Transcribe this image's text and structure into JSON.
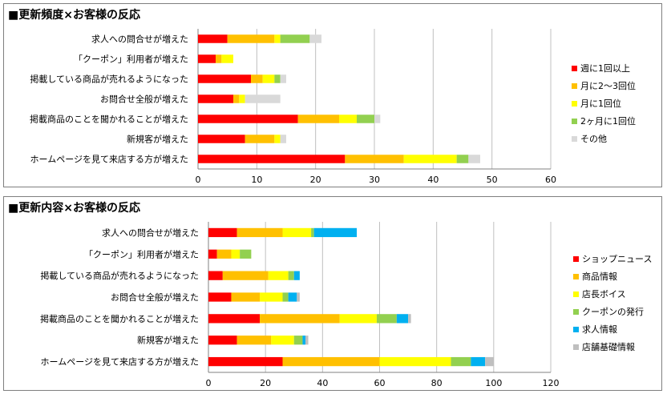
{
  "chart_data": [
    {
      "type": "bar",
      "orientation": "horizontal",
      "stacked": true,
      "title": "■更新頻度×お客様の反応",
      "categories": [
        "求人への問合せが増えた",
        "「クーポン」利用者が増えた",
        "掲載している商品が売れるようになった",
        "お問合せ全般が増えた",
        "掲載商品のことを聞かれることが増えた",
        "新規客が増えた",
        "ホームページを見て来店する方が増えた"
      ],
      "series": [
        {
          "name": "週に1回以上",
          "color": "#ff0000",
          "values": [
            5,
            3,
            9,
            6,
            17,
            8,
            25
          ]
        },
        {
          "name": "月に2〜3回位",
          "color": "#ffc000",
          "values": [
            8,
            1,
            2,
            1,
            7,
            5,
            10
          ]
        },
        {
          "name": "月に1回位",
          "color": "#ffff00",
          "values": [
            1,
            2,
            2,
            1,
            3,
            1,
            9
          ]
        },
        {
          "name": "2ヶ月に1回位",
          "color": "#92d050",
          "values": [
            5,
            0,
            1,
            0,
            3,
            0,
            2
          ]
        },
        {
          "name": "その他",
          "color": "#d9d9d9",
          "values": [
            2,
            0,
            1,
            6,
            1,
            1,
            2
          ]
        }
      ],
      "xlim": [
        0,
        60
      ],
      "xticks": [
        0,
        10,
        20,
        30,
        40,
        50,
        60
      ],
      "grid": true,
      "legend": "right"
    },
    {
      "type": "bar",
      "orientation": "horizontal",
      "stacked": true,
      "title": "■更新内容×お客様の反応",
      "categories": [
        "求人への問合せが増えた",
        "「クーポン」利用者が増えた",
        "掲載している商品が売れるようになった",
        "お問合せ全般が増えた",
        "掲載商品のことを聞かれることが増えた",
        "新規客が増えた",
        "ホームページを見て来店する方が増えた"
      ],
      "series": [
        {
          "name": "ショップニュース",
          "color": "#ff0000",
          "values": [
            10,
            3,
            5,
            8,
            18,
            10,
            26
          ]
        },
        {
          "name": "商品情報",
          "color": "#ffc000",
          "values": [
            16,
            5,
            16,
            10,
            28,
            12,
            34
          ]
        },
        {
          "name": "店長ボイス",
          "color": "#ffff00",
          "values": [
            10,
            3,
            7,
            8,
            13,
            8,
            25
          ]
        },
        {
          "name": "クーポンの発行",
          "color": "#92d050",
          "values": [
            1,
            4,
            2,
            2,
            7,
            3,
            7
          ]
        },
        {
          "name": "求人情報",
          "color": "#00b0f0",
          "values": [
            15,
            0,
            2,
            3,
            4,
            1,
            5
          ]
        },
        {
          "name": "店舗基礎情報",
          "color": "#bfbfbf",
          "values": [
            0,
            0,
            0,
            1,
            1,
            1,
            3
          ]
        }
      ],
      "xlim": [
        0,
        120
      ],
      "xticks": [
        0,
        20,
        40,
        60,
        80,
        100,
        120
      ],
      "grid": true,
      "legend": "right"
    }
  ]
}
